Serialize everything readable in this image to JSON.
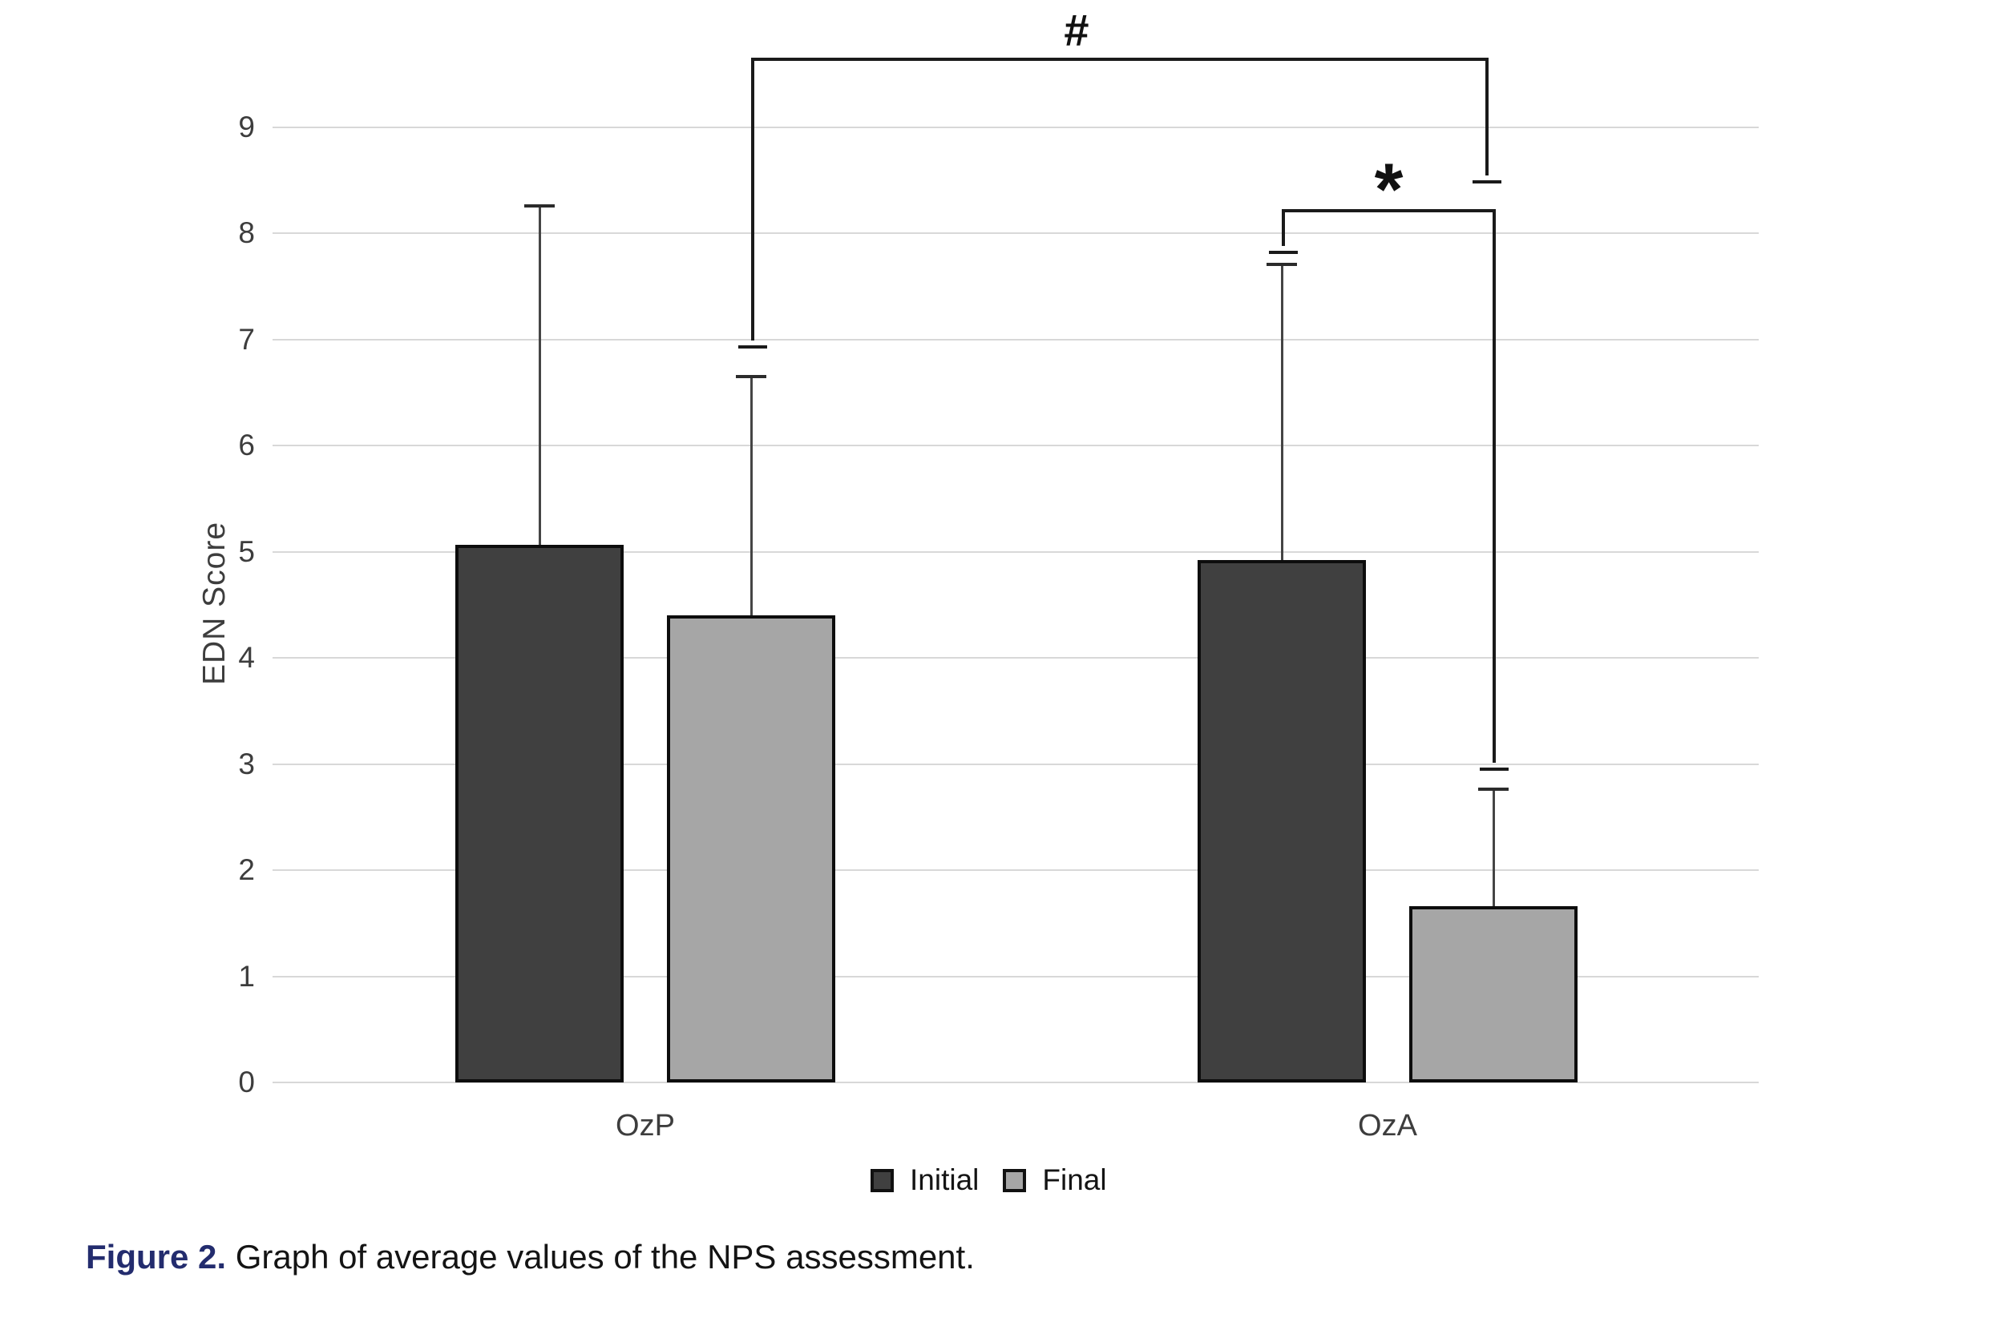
{
  "figure": {
    "caption_label": "Figure 2.",
    "caption_text": " Graph of average values of the NPS assessment."
  },
  "chart_data": {
    "type": "bar",
    "title": "",
    "xlabel": "",
    "ylabel": "EDN Score",
    "categories": [
      "OzP",
      "OzA"
    ],
    "series": [
      {
        "name": "Initial",
        "color": "#404040",
        "values": [
          5.07,
          4.92
        ],
        "error_upper": [
          8.26,
          7.71
        ]
      },
      {
        "name": "Final",
        "color": "#a6a6a6",
        "values": [
          4.4,
          1.66
        ],
        "error_upper": [
          6.65,
          2.76
        ]
      }
    ],
    "ylim": [
      0,
      9
    ],
    "yticks": [
      0,
      1,
      2,
      3,
      4,
      5,
      6,
      7,
      8,
      9
    ],
    "grid": "horizontal",
    "legend_position": "bottom",
    "error_bars": "upper whiskers (mean + SD) with caps",
    "annotations": [
      {
        "symbol": "#",
        "from": {
          "category": "OzP",
          "series": "Final"
        },
        "to": {
          "category": "OzA",
          "series": "Final"
        },
        "top_value": 9.66,
        "from_end_value": 6.92,
        "to_end_value": 8.47
      },
      {
        "symbol": "*",
        "from": {
          "category": "OzA",
          "series": "Initial"
        },
        "to": {
          "category": "OzA",
          "series": "Final"
        },
        "top_value": 8.23,
        "from_end_value": 7.81,
        "to_end_value": 2.94
      }
    ]
  },
  "colors": {
    "background": "#ffffff",
    "gridline": "#d8d8d8",
    "bar_border": "#0d0d0d",
    "error_bar": "#454545",
    "bracket": "#1a1a1a",
    "axis_text": "#3d3d3d",
    "caption_accent": "#232c6e"
  }
}
